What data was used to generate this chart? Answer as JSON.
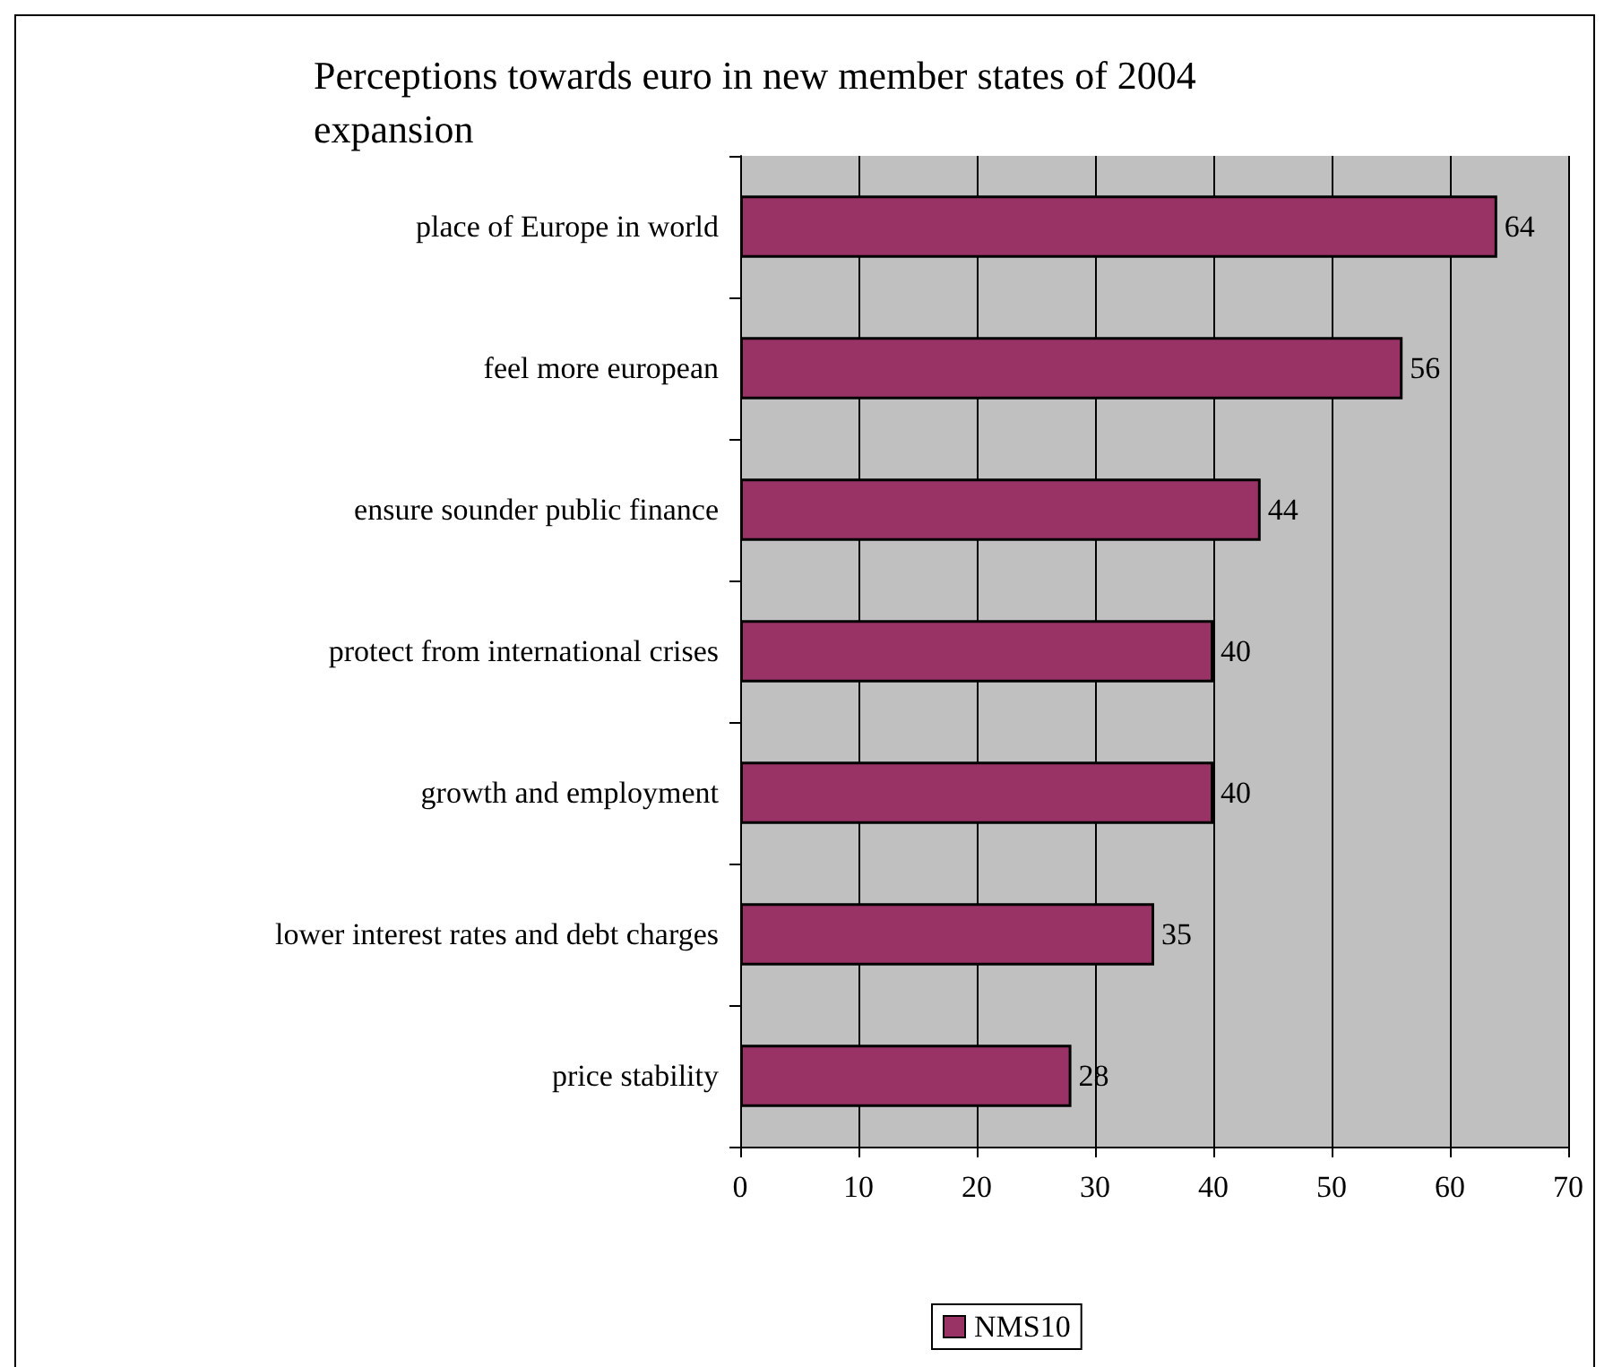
{
  "chart_data": {
    "type": "bar",
    "orientation": "horizontal",
    "title": "Perceptions towards euro in new member states of 2004 expansion",
    "categories": [
      "place of Europe in world",
      "feel more european",
      "ensure sounder public finance",
      "protect from international crises",
      "growth and employment",
      "lower interest rates and debt charges",
      "price stability"
    ],
    "series": [
      {
        "name": "NMS10",
        "color": "#993366",
        "values": [
          64,
          56,
          44,
          40,
          40,
          35,
          28
        ]
      }
    ],
    "xlim": [
      0,
      70
    ],
    "xticks": [
      0,
      10,
      20,
      30,
      40,
      50,
      60,
      70
    ],
    "grid": "x",
    "legend": "bottom",
    "data_labels": true
  }
}
